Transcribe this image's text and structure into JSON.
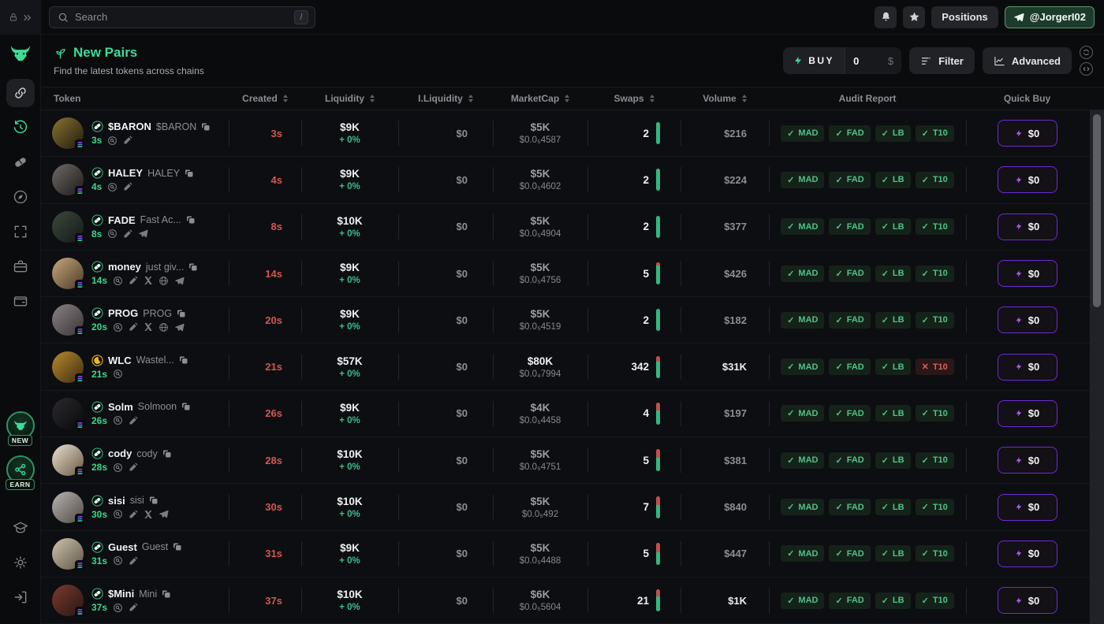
{
  "colors": {
    "accent_green": "#3ddc97",
    "created_red": "#d4574f",
    "buy_purple": "#a855f7",
    "audit_pass": "#4cc38a",
    "audit_fail": "#df5f5a",
    "solana_purple": "#9945ff",
    "solana_teal": "#14f195"
  },
  "sidebar": {
    "top_icons": [
      "lock-icon",
      "expand-chevrons-icon"
    ],
    "logo": "bull-logo",
    "nav_icons": [
      "link-icon",
      "history-icon",
      "pill-icon",
      "compass-icon",
      "scan-icon",
      "briefcase-icon",
      "wallet-icon"
    ],
    "badges": {
      "new": "NEW",
      "earn": "EARN"
    },
    "bottom_icons": [
      "education-icon",
      "settings-icon",
      "logout-icon"
    ]
  },
  "topbar": {
    "search_placeholder": "Search",
    "search_shortcut": "/",
    "positions_label": "Positions",
    "account_label": "@JorgerI02"
  },
  "header": {
    "title": "New Pairs",
    "subtitle": "Find the latest tokens across chains",
    "buy_label": "BUY",
    "buy_amount": "0",
    "buy_currency": "$",
    "filter_label": "Filter",
    "advanced_label": "Advanced"
  },
  "table": {
    "columns": [
      {
        "label": "Token",
        "sortable": false
      },
      {
        "label": "Created",
        "sortable": true
      },
      {
        "label": "Liquidity",
        "sortable": true
      },
      {
        "label": "I.Liquidity",
        "sortable": true
      },
      {
        "label": "MarketCap",
        "sortable": true
      },
      {
        "label": "Swaps",
        "sortable": true
      },
      {
        "label": "Volume",
        "sortable": true
      },
      {
        "label": "Audit Report",
        "sortable": false
      },
      {
        "label": "Quick Buy",
        "sortable": false
      }
    ],
    "audit_labels": [
      "MAD",
      "FAD",
      "LB",
      "T10"
    ],
    "rows": [
      {
        "symbol": "$BARON",
        "name": "$BARON",
        "time": "3s",
        "created": "3s",
        "platform": "pump",
        "links": [
          "search",
          "pencil"
        ],
        "liquidity": "$9K",
        "liquidity_change": "+ 0%",
        "initial_liquidity": "$0",
        "marketcap": "$5K",
        "price": "$0.0₅4587",
        "swaps": "2",
        "buy_ratio": 1.0,
        "volume": "$216",
        "volume_bright": false,
        "mc_bright": false,
        "audit": [
          true,
          true,
          true,
          true
        ],
        "quickbuy": "$0",
        "avatar": [
          "#8a7430",
          "#1f1a10"
        ]
      },
      {
        "symbol": "HALEY",
        "name": "HALEY",
        "time": "4s",
        "created": "4s",
        "platform": "pump",
        "links": [
          "search",
          "pencil"
        ],
        "liquidity": "$9K",
        "liquidity_change": "+ 0%",
        "initial_liquidity": "$0",
        "marketcap": "$5K",
        "price": "$0.0₅4602",
        "swaps": "2",
        "buy_ratio": 1.0,
        "volume": "$224",
        "volume_bright": false,
        "mc_bright": false,
        "audit": [
          true,
          true,
          true,
          true
        ],
        "quickbuy": "$0",
        "avatar": [
          "#6e6a66",
          "#1c1b1a"
        ]
      },
      {
        "symbol": "FADE",
        "name": "Fast Ac...",
        "time": "8s",
        "created": "8s",
        "platform": "pump",
        "links": [
          "search",
          "pencil",
          "telegram"
        ],
        "liquidity": "$10K",
        "liquidity_change": "+ 0%",
        "initial_liquidity": "$0",
        "marketcap": "$5K",
        "price": "$0.0₅4904",
        "swaps": "2",
        "buy_ratio": 1.0,
        "volume": "$377",
        "volume_bright": false,
        "mc_bright": false,
        "audit": [
          true,
          true,
          true,
          true
        ],
        "quickbuy": "$0",
        "avatar": [
          "#3c4a3a",
          "#15181a"
        ]
      },
      {
        "symbol": "money",
        "name": "just giv...",
        "time": "14s",
        "created": "14s",
        "platform": "pump",
        "links": [
          "search",
          "pencil",
          "x",
          "globe",
          "telegram"
        ],
        "liquidity": "$9K",
        "liquidity_change": "+ 0%",
        "initial_liquidity": "$0",
        "marketcap": "$5K",
        "price": "$0.0₅4756",
        "swaps": "5",
        "buy_ratio": 0.85,
        "volume": "$426",
        "volume_bright": false,
        "mc_bright": false,
        "audit": [
          true,
          true,
          true,
          true
        ],
        "quickbuy": "$0",
        "avatar": [
          "#c9a87c",
          "#4a3a28"
        ]
      },
      {
        "symbol": "PROG",
        "name": "PROG",
        "time": "20s",
        "created": "20s",
        "platform": "pump",
        "links": [
          "search",
          "pencil",
          "x",
          "globe",
          "telegram"
        ],
        "liquidity": "$9K",
        "liquidity_change": "+ 0%",
        "initial_liquidity": "$0",
        "marketcap": "$5K",
        "price": "$0.0₅4519",
        "swaps": "2",
        "buy_ratio": 1.0,
        "volume": "$182",
        "volume_bright": false,
        "mc_bright": false,
        "audit": [
          true,
          true,
          true,
          true
        ],
        "quickbuy": "$0",
        "avatar": [
          "#8a8284",
          "#3a3436"
        ]
      },
      {
        "symbol": "WLC",
        "name": "Wastel...",
        "time": "21s",
        "created": "21s",
        "platform": "moonshot",
        "links": [
          "search"
        ],
        "liquidity": "$57K",
        "liquidity_change": "+ 0%",
        "initial_liquidity": "$0",
        "marketcap": "$80K",
        "price": "$0.0₄7994",
        "swaps": "342",
        "buy_ratio": 0.72,
        "volume": "$31K",
        "volume_bright": true,
        "mc_bright": true,
        "audit": [
          true,
          true,
          true,
          false
        ],
        "quickbuy": "$0",
        "avatar": [
          "#b98a2e",
          "#3d2c12"
        ]
      },
      {
        "symbol": "Solm",
        "name": "Solmoon",
        "time": "26s",
        "created": "26s",
        "platform": "pump",
        "links": [
          "search",
          "pencil"
        ],
        "liquidity": "$9K",
        "liquidity_change": "+ 0%",
        "initial_liquidity": "$0",
        "marketcap": "$4K",
        "price": "$0.0₅4458",
        "swaps": "4",
        "buy_ratio": 0.65,
        "volume": "$197",
        "volume_bright": false,
        "mc_bright": false,
        "audit": [
          true,
          true,
          true,
          true
        ],
        "quickbuy": "$0",
        "avatar": [
          "#2a2a2e",
          "#0a0a0c"
        ]
      },
      {
        "symbol": "cody",
        "name": "cody",
        "time": "28s",
        "created": "28s",
        "platform": "pump",
        "links": [
          "search",
          "pencil"
        ],
        "liquidity": "$10K",
        "liquidity_change": "+ 0%",
        "initial_liquidity": "$0",
        "marketcap": "$5K",
        "price": "$0.0₅4751",
        "swaps": "5",
        "buy_ratio": 0.62,
        "volume": "$381",
        "volume_bright": false,
        "mc_bright": false,
        "audit": [
          true,
          true,
          true,
          true
        ],
        "quickbuy": "$0",
        "avatar": [
          "#e8e2d4",
          "#6b5640"
        ]
      },
      {
        "symbol": "sisi",
        "name": "sisi",
        "time": "30s",
        "created": "30s",
        "platform": "pump",
        "links": [
          "search",
          "pencil",
          "x",
          "telegram"
        ],
        "liquidity": "$10K",
        "liquidity_change": "+ 0%",
        "initial_liquidity": "$0",
        "marketcap": "$5K",
        "price": "$0.0₅492",
        "swaps": "7",
        "buy_ratio": 0.6,
        "volume": "$840",
        "volume_bright": false,
        "mc_bright": false,
        "audit": [
          true,
          true,
          true,
          true
        ],
        "quickbuy": "$0",
        "avatar": [
          "#b9b4ae",
          "#4e4a46"
        ]
      },
      {
        "symbol": "Guest",
        "name": "Guest",
        "time": "31s",
        "created": "31s",
        "platform": "pump",
        "links": [
          "search",
          "pencil"
        ],
        "liquidity": "$9K",
        "liquidity_change": "+ 0%",
        "initial_liquidity": "$0",
        "marketcap": "$5K",
        "price": "$0.0₅4488",
        "swaps": "5",
        "buy_ratio": 0.55,
        "volume": "$447",
        "volume_bright": false,
        "mc_bright": false,
        "audit": [
          true,
          true,
          true,
          true
        ],
        "quickbuy": "$0",
        "avatar": [
          "#cfc4ae",
          "#5e5546"
        ]
      },
      {
        "symbol": "$Mini",
        "name": "Mini",
        "time": "37s",
        "created": "37s",
        "platform": "pump",
        "links": [
          "search",
          "pencil"
        ],
        "liquidity": "$10K",
        "liquidity_change": "+ 0%",
        "initial_liquidity": "$0",
        "marketcap": "$6K",
        "price": "$0.0₅5604",
        "swaps": "21",
        "buy_ratio": 0.67,
        "volume": "$1K",
        "volume_bright": true,
        "mc_bright": false,
        "audit": [
          true,
          true,
          true,
          true
        ],
        "quickbuy": "$0",
        "avatar": [
          "#7a3b30",
          "#2a1512"
        ]
      }
    ]
  }
}
